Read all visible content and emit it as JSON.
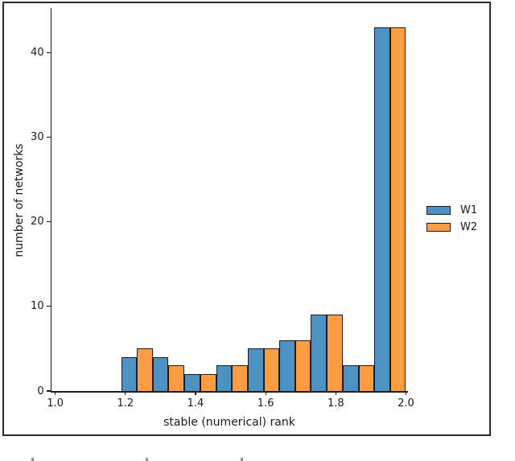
{
  "chart_data": {
    "type": "bar",
    "subtype": "grouped-histogram",
    "title": "",
    "xlabel": "stable (numerical) rank",
    "ylabel": "number of networks",
    "xlim": [
      0.986,
      2.007
    ],
    "ylim": [
      0,
      45.3
    ],
    "grid": false,
    "x_ticks": [
      {
        "v": 1.0,
        "label": "1.0"
      },
      {
        "v": 1.2,
        "label": "1.2"
      },
      {
        "v": 1.4,
        "label": "1.4"
      },
      {
        "v": 1.6,
        "label": "1.6"
      },
      {
        "v": 1.8,
        "label": "1.8"
      },
      {
        "v": 2.0,
        "label": "2.0"
      }
    ],
    "y_ticks": [
      {
        "v": 0,
        "label": "0"
      },
      {
        "v": 10,
        "label": "10"
      },
      {
        "v": 20,
        "label": "20"
      },
      {
        "v": 30,
        "label": "30"
      },
      {
        "v": 40,
        "label": "40"
      }
    ],
    "bin_edges": [
      1.188,
      1.278,
      1.368,
      1.459,
      1.549,
      1.639,
      1.729,
      1.82,
      1.91,
      2.0
    ],
    "series": [
      {
        "name": "W1",
        "color": "#4c92c3",
        "values": [
          4,
          4,
          2,
          3,
          5,
          6,
          9,
          3,
          43
        ]
      },
      {
        "name": "W2",
        "color": "#ff9d45",
        "values": [
          5,
          3,
          2,
          3,
          5,
          6,
          9,
          3,
          43
        ]
      }
    ],
    "bar_edge_color": "#1c1c1c",
    "legend": {
      "position": "right-outside",
      "entries": [
        "W1",
        "W2"
      ]
    }
  }
}
